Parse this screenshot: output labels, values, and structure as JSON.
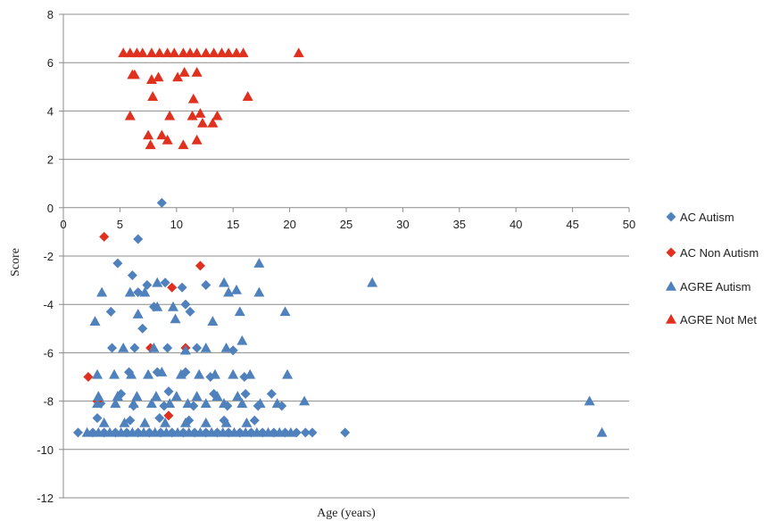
{
  "chart_data": {
    "type": "scatter",
    "title": "",
    "xlabel": "Age (years)",
    "ylabel": "Score",
    "xlim": [
      0,
      50
    ],
    "ylim": [
      -12,
      8
    ],
    "x_ticks": [
      0,
      5,
      10,
      15,
      20,
      25,
      30,
      35,
      40,
      45,
      50
    ],
    "y_ticks": [
      8,
      6,
      4,
      2,
      0,
      -2,
      -4,
      -6,
      -8,
      -10,
      -12
    ],
    "grid": "horizontal",
    "legend_position": "right",
    "series": [
      {
        "name": "AC Autism",
        "marker": "diamond",
        "color": "#4f81bd",
        "points": [
          [
            1.3,
            -9.3
          ],
          [
            8.7,
            0.2
          ],
          [
            6.6,
            -1.3
          ],
          [
            4.8,
            -2.3
          ],
          [
            6.1,
            -2.8
          ],
          [
            9.0,
            -3.1
          ],
          [
            7.4,
            -3.2
          ],
          [
            12.6,
            -3.2
          ],
          [
            6.6,
            -3.5
          ],
          [
            10.5,
            -3.3
          ],
          [
            4.2,
            -4.3
          ],
          [
            8.0,
            -4.1
          ],
          [
            10.8,
            -4.0
          ],
          [
            11.2,
            -4.3
          ],
          [
            7.0,
            -5.0
          ],
          [
            4.3,
            -5.8
          ],
          [
            6.3,
            -5.8
          ],
          [
            9.2,
            -5.8
          ],
          [
            11.8,
            -5.8
          ],
          [
            15.0,
            -5.9
          ],
          [
            5.8,
            -6.8
          ],
          [
            8.3,
            -6.8
          ],
          [
            10.8,
            -6.8
          ],
          [
            13.0,
            -7.0
          ],
          [
            16.0,
            -7.0
          ],
          [
            5.1,
            -7.7
          ],
          [
            9.3,
            -7.6
          ],
          [
            13.3,
            -7.7
          ],
          [
            16.1,
            -7.7
          ],
          [
            18.4,
            -7.7
          ],
          [
            3.3,
            -8.1
          ],
          [
            6.2,
            -8.2
          ],
          [
            8.9,
            -8.2
          ],
          [
            11.5,
            -8.2
          ],
          [
            14.5,
            -8.2
          ],
          [
            17.2,
            -8.2
          ],
          [
            19.3,
            -8.2
          ],
          [
            3.0,
            -8.7
          ],
          [
            5.9,
            -8.8
          ],
          [
            8.5,
            -8.7
          ],
          [
            11.1,
            -8.8
          ],
          [
            14.2,
            -8.8
          ],
          [
            16.9,
            -8.8
          ],
          [
            2.6,
            -9.3
          ],
          [
            3.6,
            -9.3
          ],
          [
            4.6,
            -9.3
          ],
          [
            5.6,
            -9.3
          ],
          [
            6.6,
            -9.3
          ],
          [
            7.6,
            -9.3
          ],
          [
            8.6,
            -9.3
          ],
          [
            9.6,
            -9.3
          ],
          [
            10.6,
            -9.3
          ],
          [
            11.6,
            -9.3
          ],
          [
            12.6,
            -9.3
          ],
          [
            13.6,
            -9.3
          ],
          [
            14.6,
            -9.3
          ],
          [
            15.6,
            -9.3
          ],
          [
            16.6,
            -9.3
          ],
          [
            17.6,
            -9.3
          ],
          [
            18.6,
            -9.3
          ],
          [
            19.6,
            -9.3
          ],
          [
            20.6,
            -9.3
          ],
          [
            21.4,
            -9.3
          ],
          [
            22.0,
            -9.3
          ],
          [
            24.9,
            -9.3
          ]
        ]
      },
      {
        "name": "AC Non Autism",
        "marker": "diamond",
        "color": "#e0301e",
        "points": [
          [
            3.6,
            -1.2
          ],
          [
            12.1,
            -2.4
          ],
          [
            9.6,
            -3.3
          ],
          [
            2.2,
            -7.0
          ],
          [
            7.7,
            -5.8
          ],
          [
            10.8,
            -5.8
          ],
          [
            3.0,
            -8.0
          ],
          [
            9.3,
            -8.6
          ]
        ]
      },
      {
        "name": "AGRE Autism",
        "marker": "triangle",
        "color": "#4f81bd",
        "points": [
          [
            17.3,
            -2.3
          ],
          [
            27.3,
            -3.1
          ],
          [
            3.4,
            -3.5
          ],
          [
            5.9,
            -3.5
          ],
          [
            7.2,
            -3.5
          ],
          [
            8.3,
            -3.1
          ],
          [
            14.2,
            -3.1
          ],
          [
            14.6,
            -3.5
          ],
          [
            15.3,
            -3.4
          ],
          [
            17.3,
            -3.5
          ],
          [
            2.8,
            -4.7
          ],
          [
            6.6,
            -4.4
          ],
          [
            8.3,
            -4.1
          ],
          [
            9.7,
            -4.1
          ],
          [
            9.9,
            -4.6
          ],
          [
            13.2,
            -4.7
          ],
          [
            15.6,
            -4.3
          ],
          [
            19.6,
            -4.3
          ],
          [
            5.3,
            -5.8
          ],
          [
            8.0,
            -5.8
          ],
          [
            10.8,
            -5.9
          ],
          [
            12.6,
            -5.8
          ],
          [
            14.4,
            -5.8
          ],
          [
            15.8,
            -5.5
          ],
          [
            3.0,
            -6.9
          ],
          [
            4.5,
            -6.9
          ],
          [
            6.0,
            -6.9
          ],
          [
            7.5,
            -6.9
          ],
          [
            8.7,
            -6.8
          ],
          [
            10.4,
            -6.9
          ],
          [
            12.0,
            -6.9
          ],
          [
            13.4,
            -6.9
          ],
          [
            15.0,
            -6.9
          ],
          [
            16.5,
            -6.9
          ],
          [
            19.8,
            -6.9
          ],
          [
            3.1,
            -7.8
          ],
          [
            4.8,
            -7.8
          ],
          [
            6.5,
            -7.8
          ],
          [
            8.2,
            -7.8
          ],
          [
            10.0,
            -7.8
          ],
          [
            11.8,
            -7.8
          ],
          [
            13.6,
            -7.8
          ],
          [
            15.4,
            -7.8
          ],
          [
            3.0,
            -8.1
          ],
          [
            4.6,
            -8.1
          ],
          [
            6.2,
            -8.1
          ],
          [
            7.8,
            -8.1
          ],
          [
            9.4,
            -8.1
          ],
          [
            11.0,
            -8.1
          ],
          [
            12.6,
            -8.1
          ],
          [
            14.2,
            -8.1
          ],
          [
            15.8,
            -8.1
          ],
          [
            17.4,
            -8.1
          ],
          [
            18.9,
            -8.1
          ],
          [
            21.3,
            -8.0
          ],
          [
            46.5,
            -8.0
          ],
          [
            3.6,
            -8.9
          ],
          [
            5.4,
            -8.9
          ],
          [
            7.2,
            -8.9
          ],
          [
            9.0,
            -8.9
          ],
          [
            10.8,
            -8.9
          ],
          [
            12.6,
            -8.9
          ],
          [
            14.4,
            -8.9
          ],
          [
            16.2,
            -8.9
          ],
          [
            2.1,
            -9.3
          ],
          [
            3.1,
            -9.3
          ],
          [
            4.1,
            -9.3
          ],
          [
            5.1,
            -9.3
          ],
          [
            6.1,
            -9.3
          ],
          [
            7.1,
            -9.3
          ],
          [
            8.1,
            -9.3
          ],
          [
            9.1,
            -9.3
          ],
          [
            10.1,
            -9.3
          ],
          [
            11.1,
            -9.3
          ],
          [
            12.1,
            -9.3
          ],
          [
            13.1,
            -9.3
          ],
          [
            14.1,
            -9.3
          ],
          [
            15.1,
            -9.3
          ],
          [
            16.1,
            -9.3
          ],
          [
            17.1,
            -9.3
          ],
          [
            18.1,
            -9.3
          ],
          [
            19.1,
            -9.3
          ],
          [
            20.1,
            -9.3
          ],
          [
            47.6,
            -9.3
          ]
        ]
      },
      {
        "name": "AGRE Not Met",
        "marker": "triangle",
        "color": "#e0301e",
        "points": [
          [
            5.3,
            6.4
          ],
          [
            5.9,
            6.4
          ],
          [
            6.5,
            6.4
          ],
          [
            7.0,
            6.4
          ],
          [
            7.8,
            6.4
          ],
          [
            8.5,
            6.4
          ],
          [
            9.2,
            6.4
          ],
          [
            9.8,
            6.4
          ],
          [
            10.6,
            6.4
          ],
          [
            11.2,
            6.4
          ],
          [
            11.8,
            6.4
          ],
          [
            12.6,
            6.4
          ],
          [
            13.3,
            6.4
          ],
          [
            14.0,
            6.4
          ],
          [
            14.6,
            6.4
          ],
          [
            15.3,
            6.4
          ],
          [
            15.9,
            6.4
          ],
          [
            20.8,
            6.4
          ],
          [
            6.1,
            5.5
          ],
          [
            6.3,
            5.5
          ],
          [
            7.8,
            5.3
          ],
          [
            8.4,
            5.4
          ],
          [
            10.1,
            5.4
          ],
          [
            10.7,
            5.6
          ],
          [
            11.8,
            5.6
          ],
          [
            7.9,
            4.6
          ],
          [
            11.5,
            4.5
          ],
          [
            16.3,
            4.6
          ],
          [
            5.9,
            3.8
          ],
          [
            9.4,
            3.8
          ],
          [
            11.4,
            3.8
          ],
          [
            12.1,
            3.9
          ],
          [
            12.3,
            3.5
          ],
          [
            13.2,
            3.5
          ],
          [
            13.6,
            3.8
          ],
          [
            7.5,
            3.0
          ],
          [
            8.7,
            3.0
          ],
          [
            7.7,
            2.6
          ],
          [
            9.2,
            2.8
          ],
          [
            10.6,
            2.6
          ],
          [
            11.8,
            2.8
          ]
        ]
      }
    ]
  }
}
